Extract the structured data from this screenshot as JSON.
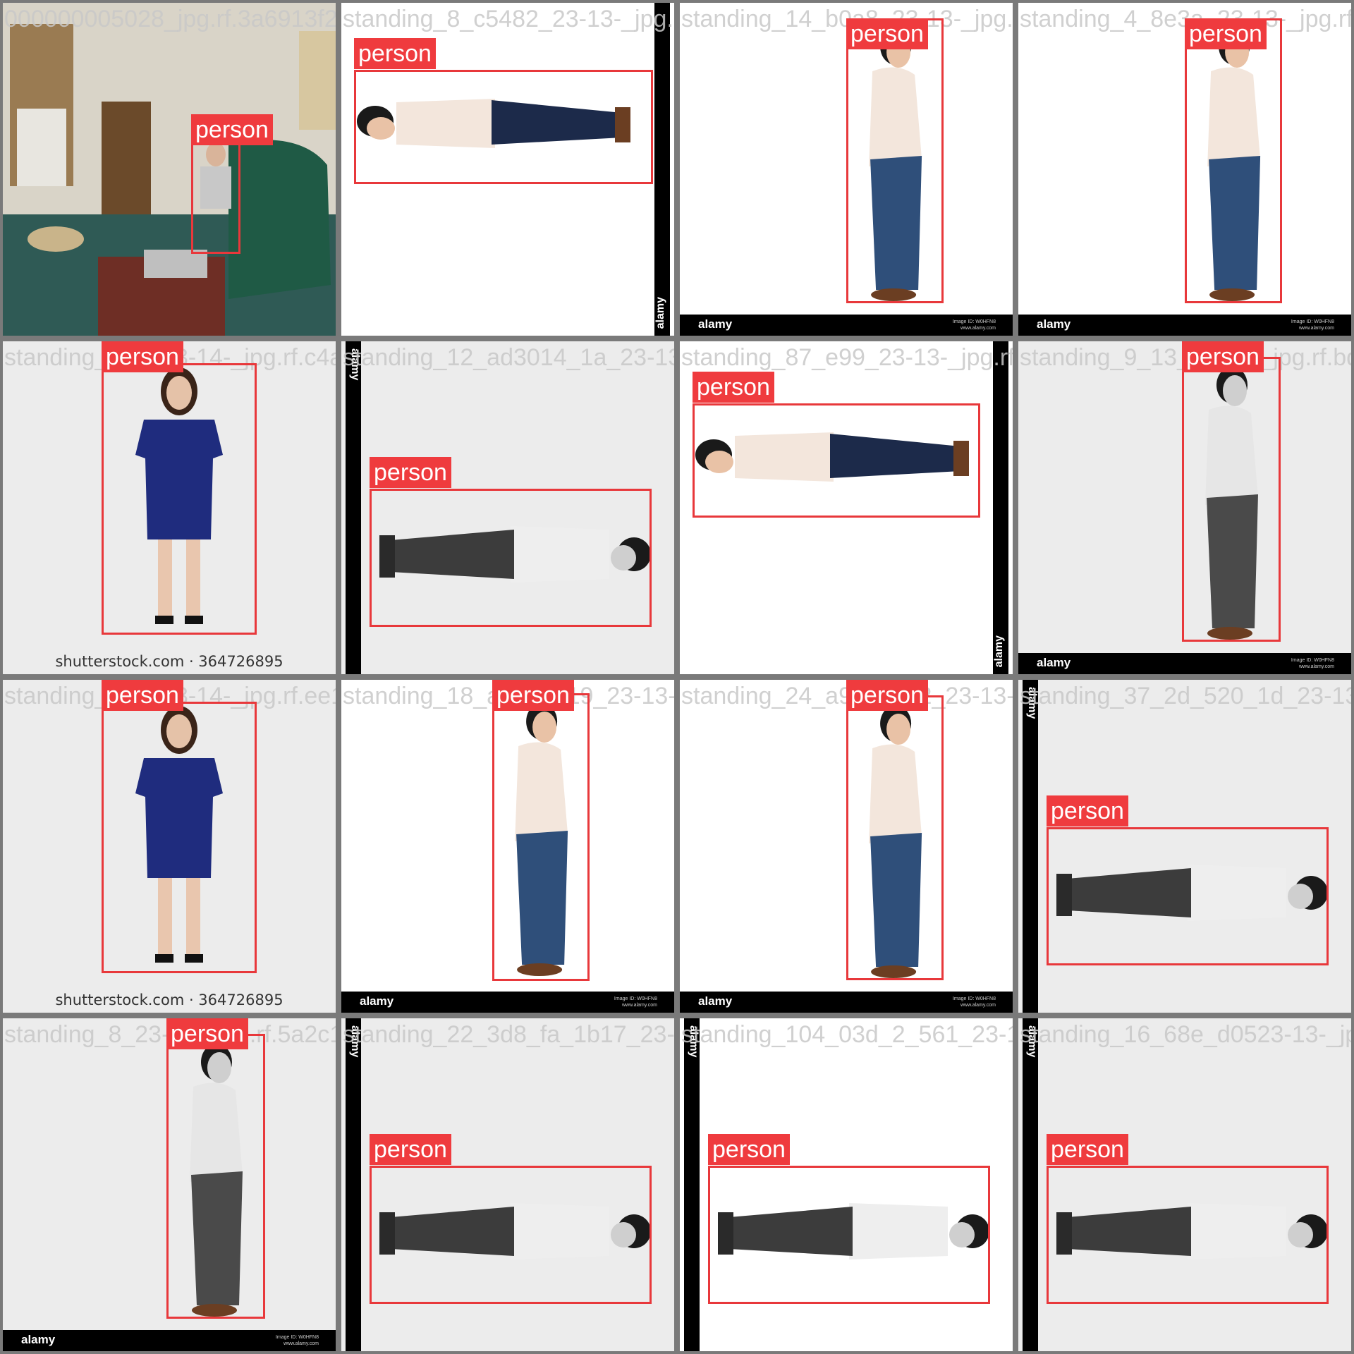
{
  "tiles": [
    {
      "filename": "000000005028_jpg.rf.3a6913f2080dc8a1e1b3e2882",
      "label": "person",
      "scene": "room",
      "watermark": null
    },
    {
      "filename": "standing_8_c5482_23-13-_jpg.rf.12ab3c4d5e6f",
      "label": "person",
      "scene": "rot-ccw",
      "watermark": "alamy"
    },
    {
      "filename": "standing_14_b0a8_23-13-_jpg.rf.fa1b2c3d4e",
      "label": "person",
      "scene": "upright",
      "watermark": "alamy"
    },
    {
      "filename": "standing_4_8e3a_23-13-_jpg.rf.b4d7f08c30",
      "label": "person",
      "scene": "upright",
      "watermark": "alamy"
    },
    {
      "filename": "standing_3_1_23-14-_jpg.rf.c4ad2e9b0f",
      "label": "person",
      "scene": "woman",
      "watermark": "shutterstock.com · 364726895"
    },
    {
      "filename": "standing_12_ad3014_1a_23-13-_jpg.rf.9e1d8c7b",
      "label": "person",
      "scene": "rot-cw-gray",
      "watermark": "alamy"
    },
    {
      "filename": "standing_87_e99_23-13-_jpg.rf.a7e6d5c4b3",
      "label": "person",
      "scene": "rot-ccw",
      "watermark": "alamy"
    },
    {
      "filename": "standing_9_13_23-13-_jpg.rf.bd7a3c5938",
      "label": "person",
      "scene": "upright-gray",
      "watermark": "alamy"
    },
    {
      "filename": "standing_3_1_23-14-_jpg.rf.ee10a2b3c4",
      "label": "person",
      "scene": "woman",
      "watermark": "shutterstock.com · 364726895"
    },
    {
      "filename": "standing_18_a00e_619_23-13-_jpg.rf.6e2b",
      "label": "person",
      "scene": "upright",
      "watermark": "alamy"
    },
    {
      "filename": "standing_24_a94_3a_2_23-13-_jpg.rf.db2a",
      "label": "person",
      "scene": "upright",
      "watermark": "alamy"
    },
    {
      "filename": "standing_37_2d_520_1d_23-13-_jpg.rf.ea3a",
      "label": "person",
      "scene": "rot-cw-gray",
      "watermark": "alamy"
    },
    {
      "filename": "standing_8_23-13-_jpg.rf.5a2c1e0f9d",
      "label": "person",
      "scene": "upright-gray",
      "watermark": "alamy"
    },
    {
      "filename": "standing_22_3d8_fa_1b17_23-13-_jpg.rf.9a",
      "label": "person",
      "scene": "rot-cw-gray",
      "watermark": "alamy"
    },
    {
      "filename": "standing_104_03d_2_561_23-13-_jpg.rf.c24",
      "label": "person",
      "scene": "rot-cw-white",
      "watermark": "alamy"
    },
    {
      "filename": "standing_16_68e_d0523-13-_jpg.rf.8a3b",
      "label": "person",
      "scene": "rot-cw-gray",
      "watermark": "alamy"
    }
  ],
  "colors": {
    "box": "#e8383b",
    "label_bg": "#ef3b3e",
    "label_text": "#ffffff"
  },
  "footer": {
    "small_line1": "Image ID: W0HFN8",
    "small_line2": "www.alamy.com"
  }
}
